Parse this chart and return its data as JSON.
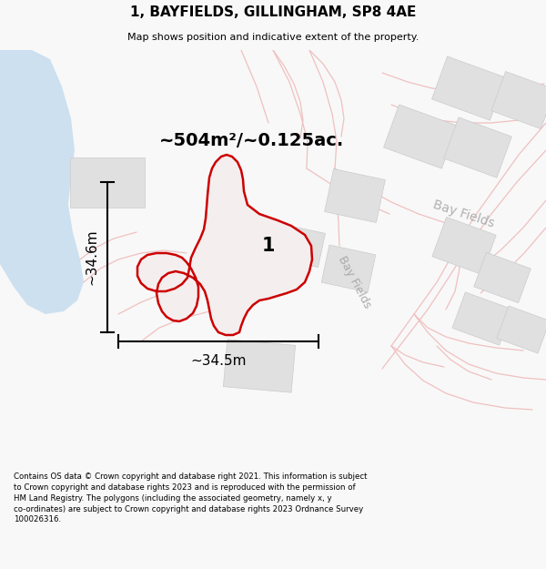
{
  "title": "1, BAYFIELDS, GILLINGHAM, SP8 4AE",
  "subtitle": "Map shows position and indicative extent of the property.",
  "footer": "Contains OS data © Crown copyright and database right 2021. This information is subject\nto Crown copyright and database rights 2023 and is reproduced with the permission of\nHM Land Registry. The polygons (including the associated geometry, namely x, y\nco-ordinates) are subject to Crown copyright and database rights 2023 Ordnance Survey\n100026316.",
  "area_label": "~504m²/~0.125ac.",
  "width_label": "~34.5m",
  "height_label": "~34.6m",
  "plot_number": "1",
  "water_color": "#cce0f0",
  "building_fill": "#e0e0e0",
  "building_edge": "#cccccc",
  "road_color": "#f0c0c0",
  "subject_edge": "#cc0000",
  "subject_fill": "#f5eeee",
  "other_edge": "#e8a0a0",
  "bg_color": "#f8f8f8",
  "map_bg": "#ffffff"
}
